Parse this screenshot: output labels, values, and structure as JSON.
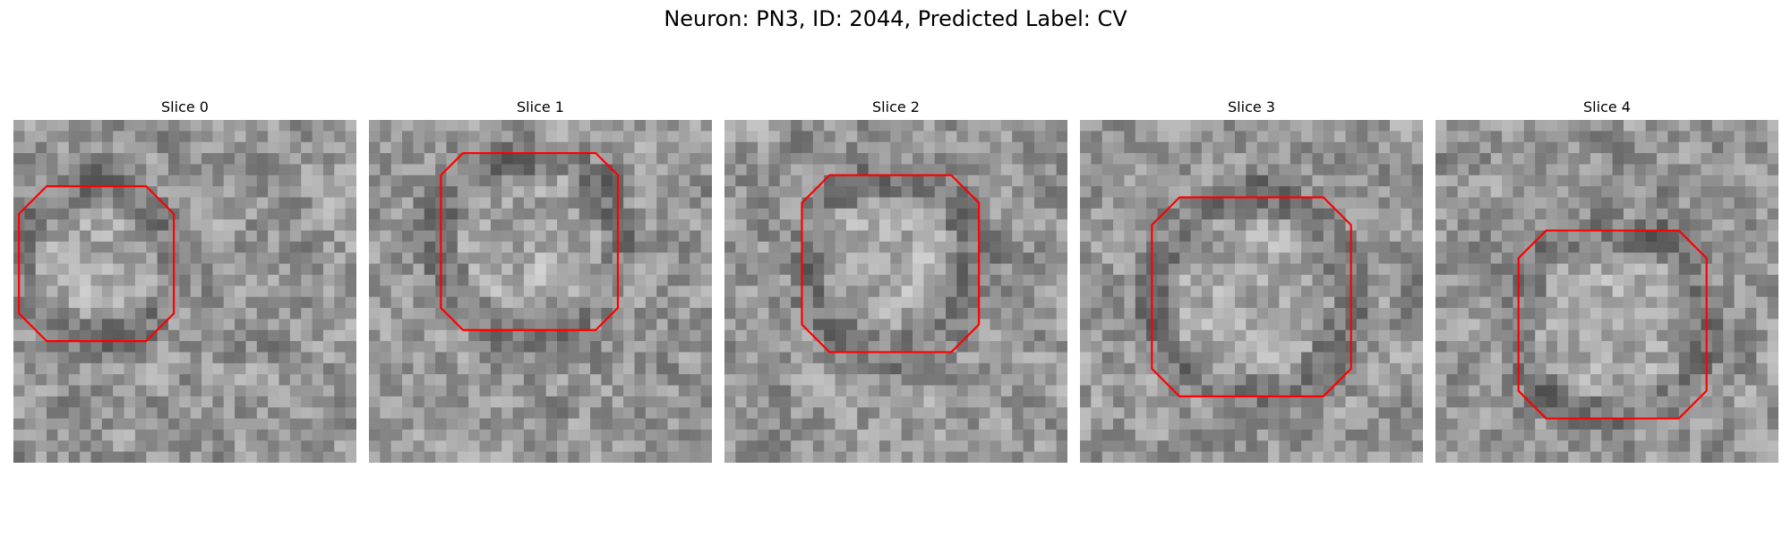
{
  "figure": {
    "title": "Neuron: PN3, ID: 2044, Predicted Label: CV",
    "colormap": "grayscale",
    "contour_color": "#ff0000"
  },
  "slices": [
    {
      "title": "Slice 0"
    },
    {
      "title": "Slice 1"
    },
    {
      "title": "Slice 2"
    },
    {
      "title": "Slice 3"
    },
    {
      "title": "Slice 4"
    }
  ]
}
